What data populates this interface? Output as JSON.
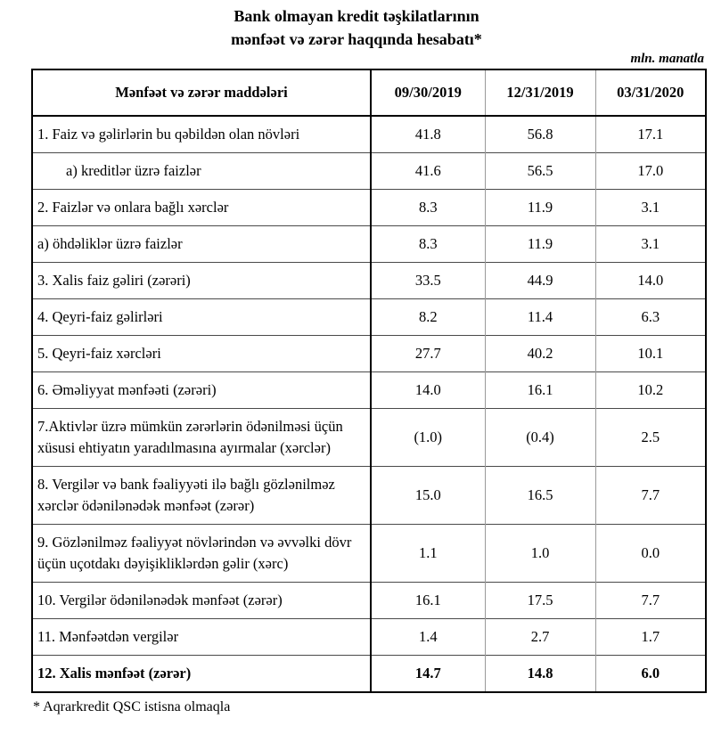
{
  "title": {
    "line1": "Bank olmayan kredit təşkilatlarının",
    "line2": "mənfəət və zərər haqqında hesabatı*"
  },
  "unit_note": "mln. manatla",
  "table": {
    "header": {
      "label": "Mənfəət və zərər maddələri",
      "columns": [
        "09/30/2019",
        "12/31/2019",
        "03/31/2020"
      ]
    },
    "rows": [
      {
        "label": "1. Faiz və gəlirlərin bu qəbildən olan növləri",
        "values": [
          "41.8",
          "56.8",
          "17.1"
        ],
        "indent": false,
        "bold": false
      },
      {
        "label": "a) kreditlər üzrə faizlər",
        "values": [
          "41.6",
          "56.5",
          "17.0"
        ],
        "indent": true,
        "bold": false
      },
      {
        "label": "2. Faizlər və onlara bağlı xərclər",
        "values": [
          "8.3",
          "11.9",
          "3.1"
        ],
        "indent": false,
        "bold": false
      },
      {
        "label": "a) öhdəliklər üzrə faizlər",
        "values": [
          "8.3",
          "11.9",
          "3.1"
        ],
        "indent": false,
        "bold": false
      },
      {
        "label": "3. Xalis faiz gəliri (zərəri)",
        "values": [
          "33.5",
          "44.9",
          "14.0"
        ],
        "indent": false,
        "bold": false
      },
      {
        "label": "4. Qeyri-faiz gəlirləri",
        "values": [
          "8.2",
          "11.4",
          "6.3"
        ],
        "indent": false,
        "bold": false
      },
      {
        "label": "5. Qeyri-faiz xərcləri",
        "values": [
          "27.7",
          "40.2",
          "10.1"
        ],
        "indent": false,
        "bold": false
      },
      {
        "label": "6. Əməliyyat mənfəəti (zərəri)",
        "values": [
          "14.0",
          "16.1",
          "10.2"
        ],
        "indent": false,
        "bold": false
      },
      {
        "label": "7.Aktivlər üzrə mümkün zərərlərin ödənilməsi üçün xüsusi ehtiyatın yaradılmasına ayırmalar (xərclər)",
        "values": [
          "(1.0)",
          "(0.4)",
          "2.5"
        ],
        "indent": false,
        "bold": false
      },
      {
        "label": "8. Vergilər və bank fəaliyyəti ilə bağlı gözlənilməz xərclər ödənilənədək mənfəət (zərər)",
        "values": [
          "15.0",
          "16.5",
          "7.7"
        ],
        "indent": false,
        "bold": false
      },
      {
        "label": "9. Gözlənilməz fəaliyyət növlərindən və əvvəlki dövr üçün uçotdakı dəyişikliklərdən gəlir (xərc)",
        "values": [
          "1.1",
          "1.0",
          "0.0"
        ],
        "indent": false,
        "bold": false
      },
      {
        "label": "10. Vergilər ödənilənədək mənfəət (zərər)",
        "values": [
          "16.1",
          "17.5",
          "7.7"
        ],
        "indent": false,
        "bold": false
      },
      {
        "label": "11. Mənfəətdən vergilər",
        "values": [
          "1.4",
          "2.7",
          "1.7"
        ],
        "indent": false,
        "bold": false
      },
      {
        "label": "12. Xalis mənfəət (zərər)",
        "values": [
          "14.7",
          "14.8",
          "6.0"
        ],
        "indent": false,
        "bold": true
      }
    ]
  },
  "footnote": "* Aqrarkredit QSC istisna olmaqla",
  "colors": {
    "background": "#ffffff",
    "text": "#000000",
    "border_strong": "#000000",
    "border_row": "#4a4a4a",
    "border_column_light": "#9a9a9a"
  }
}
